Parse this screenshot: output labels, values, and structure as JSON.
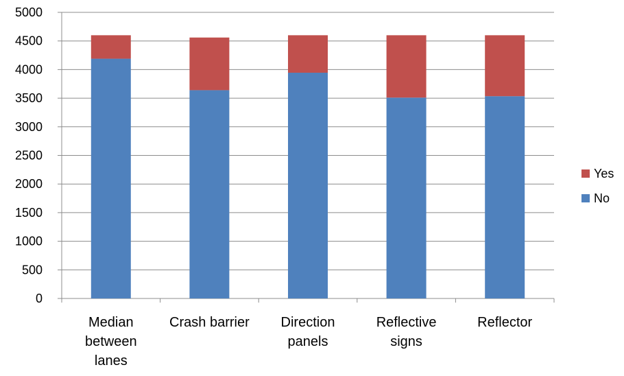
{
  "chart_data": {
    "type": "bar",
    "stacked": true,
    "categories": [
      "Median between lanes",
      "Crash barrier",
      "Direction panels",
      "Reflective signs",
      "Reflector"
    ],
    "category_lines": [
      [
        "Median",
        "between",
        "lanes"
      ],
      [
        "Crash barrier"
      ],
      [
        "Direction",
        "panels"
      ],
      [
        "Reflective",
        "signs"
      ],
      [
        "Reflector"
      ]
    ],
    "series": [
      {
        "name": "No",
        "values": [
          4190,
          3640,
          3945,
          3510,
          3535
        ],
        "color": "#4F81BD"
      },
      {
        "name": "Yes",
        "values": [
          410,
          920,
          655,
          1090,
          1065
        ],
        "color": "#C0504D"
      }
    ],
    "ylim": [
      0,
      5000
    ],
    "yticks": [
      "0",
      "500",
      "1000",
      "1500",
      "2000",
      "2500",
      "3000",
      "3500",
      "4000",
      "4500",
      "5000"
    ],
    "grid": true,
    "legend": "right",
    "title": "",
    "xlabel": "",
    "ylabel": ""
  }
}
